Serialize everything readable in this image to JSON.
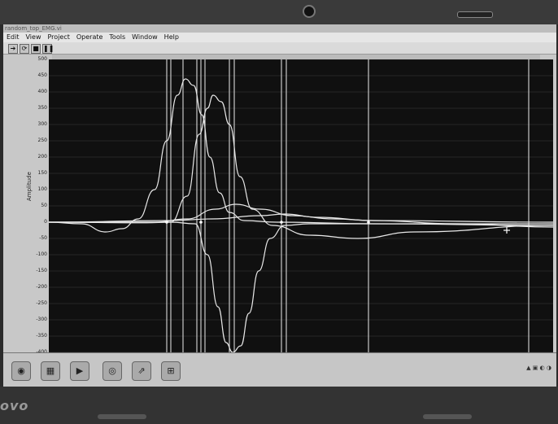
{
  "window": {
    "title": "random_top_EMG.vi"
  },
  "menu": [
    "Edit",
    "View",
    "Project",
    "Operate",
    "Tools",
    "Window",
    "Help"
  ],
  "toolbar": {
    "icons": [
      "run-arrow-icon",
      "run-continuous-icon",
      "abort-icon",
      "pause-icon"
    ],
    "glyphs": [
      "➔",
      "⟳",
      "■",
      "❚❚"
    ]
  },
  "taskbar": {
    "icons": [
      "start-orb-icon",
      "folder-icon",
      "media-player-icon",
      "browser-icon",
      "app-icon",
      "labview-icon"
    ],
    "glyphs": [
      "◉",
      "▦",
      "▶",
      "◎",
      "⇗",
      "⊞"
    ]
  },
  "brand": {
    "text": "ovo"
  },
  "chart_data": {
    "type": "line",
    "ylabel": "Amplitude",
    "ylim": [
      -400,
      500
    ],
    "yticks": [
      500,
      450,
      400,
      350,
      300,
      250,
      200,
      150,
      100,
      50,
      0,
      -50,
      -100,
      -150,
      -200,
      -250,
      -300,
      -350,
      -400
    ],
    "ytick_labels": [
      "500",
      "450",
      "400",
      "350",
      "300",
      "250",
      "200",
      "150",
      "100",
      "50",
      "0",
      "-50",
      "-100",
      "-150",
      "-200",
      "-250",
      "-300",
      "-350",
      "-400"
    ],
    "grid": true,
    "background": "#101010",
    "line_color": "#e8e8e8",
    "series": [
      {
        "points": [
          [
            0,
            0
          ],
          [
            40,
            -5
          ],
          [
            70,
            -30
          ],
          [
            90,
            -20
          ],
          [
            110,
            10
          ],
          [
            130,
            100
          ],
          [
            145,
            250
          ],
          [
            158,
            390
          ],
          [
            168,
            440
          ],
          [
            178,
            420
          ],
          [
            188,
            330
          ],
          [
            198,
            200
          ],
          [
            210,
            90
          ],
          [
            222,
            30
          ],
          [
            240,
            5
          ],
          [
            280,
            0
          ],
          [
            400,
            -5
          ],
          [
            620,
            -10
          ]
        ]
      },
      {
        "points": [
          [
            0,
            0
          ],
          [
            120,
            -2
          ],
          [
            150,
            0
          ],
          [
            170,
            80
          ],
          [
            185,
            270
          ],
          [
            195,
            350
          ],
          [
            202,
            390
          ],
          [
            212,
            370
          ],
          [
            222,
            300
          ],
          [
            235,
            140
          ],
          [
            250,
            40
          ],
          [
            275,
            -10
          ],
          [
            320,
            -40
          ],
          [
            380,
            -50
          ],
          [
            450,
            -30
          ],
          [
            620,
            -10
          ]
        ]
      },
      {
        "points": [
          [
            0,
            0
          ],
          [
            150,
            0
          ],
          [
            180,
            -5
          ],
          [
            195,
            -100
          ],
          [
            208,
            -260
          ],
          [
            218,
            -370
          ],
          [
            226,
            -400
          ],
          [
            236,
            -380
          ],
          [
            246,
            -280
          ],
          [
            258,
            -150
          ],
          [
            272,
            -50
          ],
          [
            290,
            -10
          ],
          [
            320,
            -5
          ],
          [
            620,
            -5
          ]
        ]
      },
      {
        "points": [
          [
            0,
            0
          ],
          [
            130,
            0
          ],
          [
            170,
            10
          ],
          [
            205,
            40
          ],
          [
            230,
            55
          ],
          [
            260,
            40
          ],
          [
            300,
            20
          ],
          [
            350,
            10
          ],
          [
            400,
            5
          ],
          [
            620,
            0
          ]
        ]
      },
      {
        "points": [
          [
            0,
            0
          ],
          [
            150,
            5
          ],
          [
            200,
            10
          ],
          [
            260,
            20
          ],
          [
            290,
            25
          ],
          [
            330,
            15
          ],
          [
            400,
            5
          ],
          [
            500,
            -5
          ],
          [
            620,
            -15
          ]
        ]
      }
    ],
    "cursors_x": [
      145,
      150,
      165,
      182,
      187,
      192,
      222,
      228,
      286,
      292,
      393,
      590
    ],
    "crosshair": [
      563,
      210
    ]
  }
}
